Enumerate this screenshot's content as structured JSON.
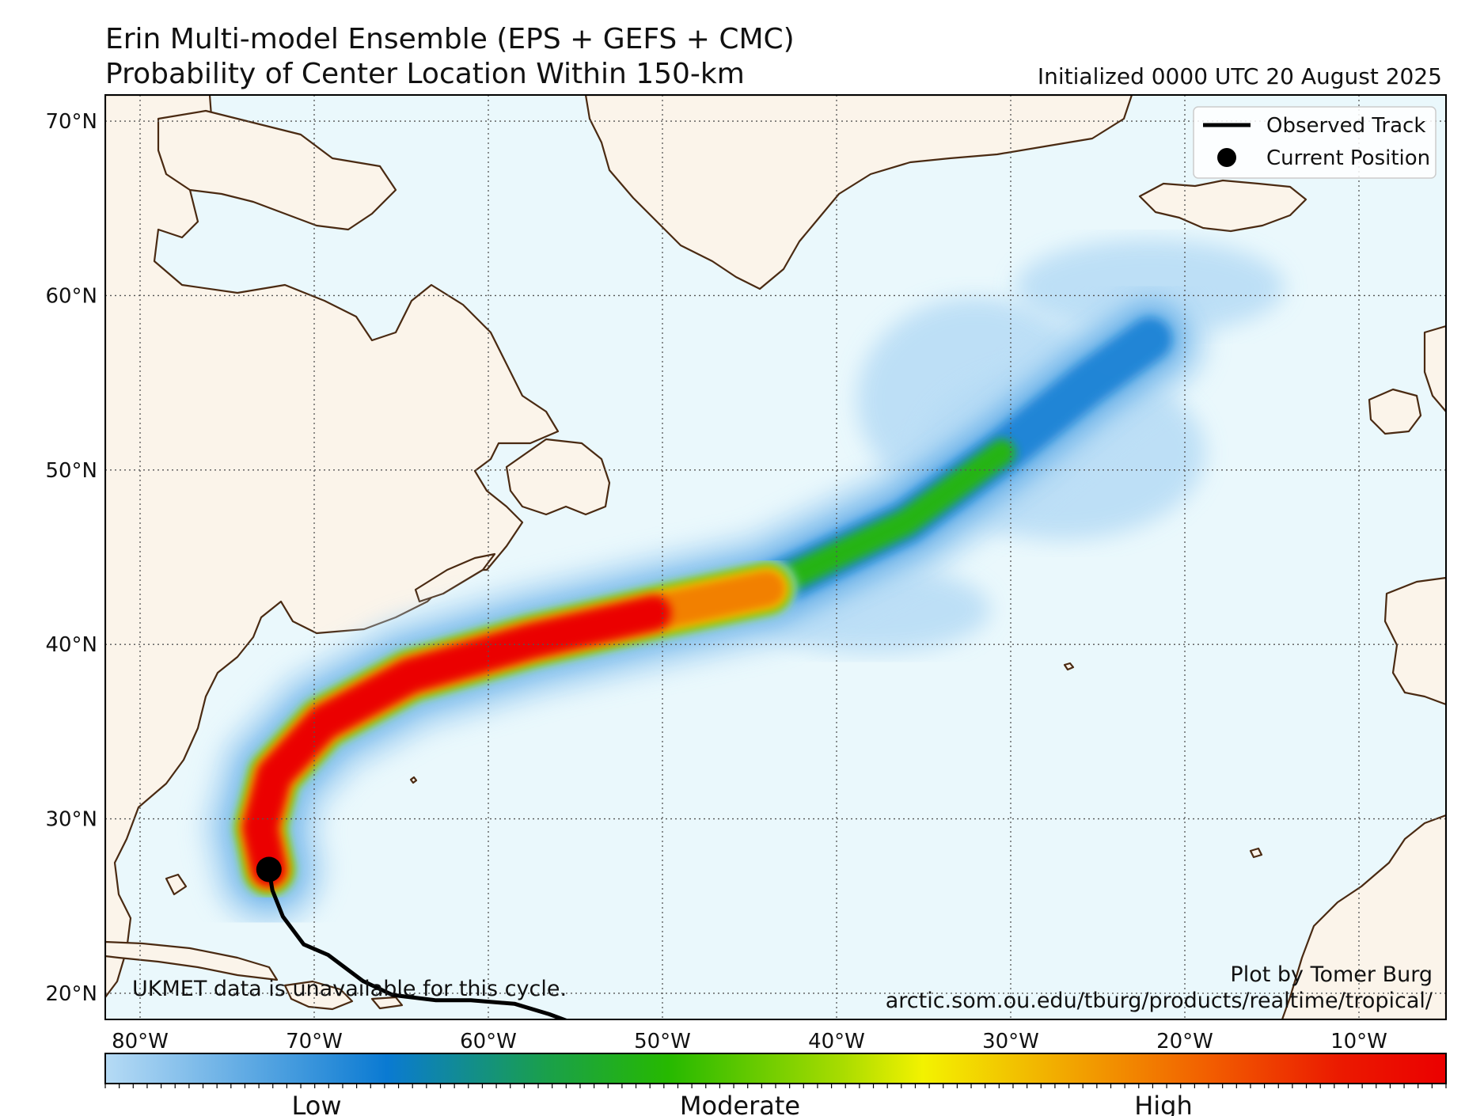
{
  "title_line1": "Erin Multi-model Ensemble (EPS + GEFS + CMC)",
  "title_line2": "Probability of Center Location Within 150-km",
  "initialized": "Initialized 0000 UTC 20 August 2025",
  "lat_labels": [
    "70°N",
    "60°N",
    "50°N",
    "40°N",
    "30°N",
    "20°N"
  ],
  "lon_labels": [
    "80°W",
    "70°W",
    "60°W",
    "50°W",
    "40°W",
    "30°W",
    "20°W",
    "10°W"
  ],
  "legend": {
    "observed_track": "Observed Track",
    "current_position": "Current Position"
  },
  "note_ukmet": "UKMET data is unavailable for this cycle.",
  "credit_line1": "Plot by Tomer Burg",
  "credit_line2": "arctic.som.ou.edu/tburg/products/realtime/tropical/",
  "colorbar": {
    "low": "Low",
    "moderate": "Moderate",
    "high": "High"
  },
  "colors": {
    "ocean": "#eaf8fc",
    "land": "#fbf4ea",
    "coast": "#4a2a12",
    "low": "#b6dbf5",
    "mid_blue": "#0a7ad2",
    "green": "#26b900",
    "yellow": "#f3f200",
    "orange": "#f28000",
    "red": "#eb0000"
  },
  "map": {
    "lon_range": [
      -82,
      -5
    ],
    "lat_range": [
      18.5,
      71.5
    ],
    "current_position": {
      "lat": 27.1,
      "lon": -72.6
    },
    "observed_track": [
      {
        "lat": 17.5,
        "lon": -53.0
      },
      {
        "lat": 18.8,
        "lon": -56.5
      },
      {
        "lat": 19.4,
        "lon": -58.5
      },
      {
        "lat": 19.6,
        "lon": -61.0
      },
      {
        "lat": 19.6,
        "lon": -63.0
      },
      {
        "lat": 19.9,
        "lon": -65.5
      },
      {
        "lat": 20.7,
        "lon": -67.2
      },
      {
        "lat": 22.2,
        "lon": -69.2
      },
      {
        "lat": 22.8,
        "lon": -70.6
      },
      {
        "lat": 24.4,
        "lon": -71.8
      },
      {
        "lat": 25.9,
        "lon": -72.4
      },
      {
        "lat": 27.1,
        "lon": -72.6
      }
    ],
    "forecast_centerline": [
      {
        "lat": 27.1,
        "lon": -72.6
      },
      {
        "lat": 29.5,
        "lon": -73.1
      },
      {
        "lat": 32.5,
        "lon": -72.3
      },
      {
        "lat": 35.5,
        "lon": -69.5
      },
      {
        "lat": 38.2,
        "lon": -64.5
      },
      {
        "lat": 40.2,
        "lon": -57.5
      },
      {
        "lat": 41.8,
        "lon": -50.5
      },
      {
        "lat": 43.2,
        "lon": -44.0
      },
      {
        "lat": 47.0,
        "lon": -36.0
      },
      {
        "lat": 51.0,
        "lon": -30.5
      },
      {
        "lat": 55.0,
        "lon": -25.5
      },
      {
        "lat": 57.5,
        "lon": -22.0
      }
    ]
  }
}
